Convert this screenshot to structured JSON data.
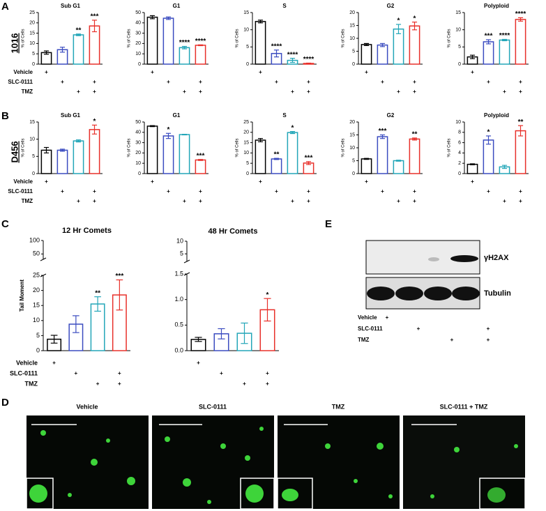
{
  "panels": [
    "A",
    "B",
    "C",
    "D",
    "E"
  ],
  "row_labels": [
    "1016",
    "D456"
  ],
  "treatments": {
    "labels": [
      "Vehicle",
      "SLC-0111",
      "TMZ"
    ],
    "marks": [
      [
        "+",
        null,
        null,
        null
      ],
      [
        null,
        "+",
        null,
        "+"
      ],
      [
        null,
        null,
        "+",
        "+"
      ]
    ]
  },
  "blot": {
    "bands": [
      "γH2AX",
      "Tubulin"
    ]
  },
  "images": {
    "titles": [
      "Vehicle",
      "SLC-0111",
      "TMZ",
      "SLC-0111 + TMZ"
    ]
  },
  "chart_data": [
    {
      "type": "bar",
      "title": "Sub G1",
      "ylabel": "% of Cells",
      "ylim": [
        0,
        25
      ],
      "yticks": [
        0,
        5,
        10,
        15,
        20,
        25
      ],
      "colors": [
        "#000000",
        "#3b4cc0",
        "#23a6b8",
        "#e8302a"
      ],
      "values": [
        5.6,
        7,
        14.2,
        18.5
      ],
      "errors": [
        0.8,
        1.2,
        0.4,
        2.8
      ],
      "significance": [
        null,
        null,
        "**",
        "***"
      ]
    },
    {
      "type": "bar",
      "title": "G1",
      "ylabel": "% of Cells",
      "ylim": [
        0,
        50
      ],
      "yticks": [
        0,
        10,
        20,
        30,
        40,
        50
      ],
      "colors": [
        "#000000",
        "#3b4cc0",
        "#23a6b8",
        "#e8302a"
      ],
      "values": [
        45.5,
        44.5,
        16,
        18.3
      ],
      "errors": [
        1.5,
        1.2,
        1.2,
        0.4
      ],
      "significance": [
        null,
        null,
        "****",
        "****"
      ]
    },
    {
      "type": "bar",
      "title": "S",
      "ylabel": "% of Cells",
      "ylim": [
        0,
        15
      ],
      "yticks": [
        0,
        5,
        10,
        15
      ],
      "colors": [
        "#000000",
        "#3b4cc0",
        "#23a6b8",
        "#e8302a"
      ],
      "values": [
        12.4,
        3.1,
        1.1,
        0.2
      ],
      "errors": [
        0.4,
        1,
        0.6,
        0.1
      ],
      "significance": [
        null,
        "****",
        "****",
        "****"
      ]
    },
    {
      "type": "bar",
      "title": "G2",
      "ylabel": "% of Cells",
      "ylim": [
        0,
        20
      ],
      "yticks": [
        0,
        5,
        10,
        15,
        20
      ],
      "colors": [
        "#000000",
        "#3b4cc0",
        "#23a6b8",
        "#e8302a"
      ],
      "values": [
        7.6,
        7.4,
        13.6,
        14.8
      ],
      "errors": [
        0.4,
        0.6,
        1.8,
        1.5
      ],
      "significance": [
        null,
        null,
        "*",
        "*"
      ]
    },
    {
      "type": "bar",
      "title": "Polyploid",
      "ylabel": "% of Cells",
      "ylim": [
        0,
        15
      ],
      "yticks": [
        0,
        5,
        10,
        15
      ],
      "colors": [
        "#000000",
        "#3b4cc0",
        "#23a6b8",
        "#e8302a"
      ],
      "values": [
        2.1,
        6.5,
        7,
        13
      ],
      "errors": [
        0.5,
        0.6,
        0.2,
        0.5
      ],
      "significance": [
        null,
        "***",
        "****",
        "****"
      ]
    },
    {
      "type": "bar",
      "title": "Sub G1",
      "ylabel": "% of Cells",
      "ylim": [
        0,
        15
      ],
      "yticks": [
        0,
        5,
        10,
        15
      ],
      "colors": [
        "#000000",
        "#3b4cc0",
        "#23a6b8",
        "#e8302a"
      ],
      "values": [
        6.8,
        6.8,
        9.5,
        12.8
      ],
      "errors": [
        0.8,
        0.3,
        0.3,
        1.3
      ],
      "significance": [
        null,
        null,
        null,
        "*"
      ]
    },
    {
      "type": "bar",
      "title": "G1",
      "ylabel": "% of Cells",
      "ylim": [
        0,
        50
      ],
      "yticks": [
        0,
        10,
        20,
        30,
        40,
        50
      ],
      "colors": [
        "#000000",
        "#3b4cc0",
        "#23a6b8",
        "#e8302a"
      ],
      "values": [
        46,
        36.5,
        37.8,
        13.2
      ],
      "errors": [
        0.5,
        2.5,
        0.3,
        0.5
      ],
      "significance": [
        null,
        "*",
        null,
        "***"
      ]
    },
    {
      "type": "bar",
      "title": "S",
      "ylabel": "% of Cells",
      "ylim": [
        0,
        25
      ],
      "yticks": [
        0,
        5,
        10,
        15,
        20,
        25
      ],
      "colors": [
        "#000000",
        "#3b4cc0",
        "#23a6b8",
        "#e8302a"
      ],
      "values": [
        16.2,
        7.1,
        19.9,
        5.1
      ],
      "errors": [
        0.8,
        0.3,
        0.5,
        0.7
      ],
      "significance": [
        null,
        "**",
        "*",
        "***"
      ]
    },
    {
      "type": "bar",
      "title": "G2",
      "ylabel": "% of Cells",
      "ylim": [
        0,
        20
      ],
      "yticks": [
        0,
        5,
        10,
        15,
        20
      ],
      "colors": [
        "#000000",
        "#3b4cc0",
        "#23a6b8",
        "#e8302a"
      ],
      "values": [
        5.7,
        14.3,
        5,
        13.4
      ],
      "errors": [
        0.2,
        0.7,
        0.2,
        0.4
      ],
      "significance": [
        null,
        "***",
        null,
        "**"
      ]
    },
    {
      "type": "bar",
      "title": "Polyploid",
      "ylabel": "% of Cells",
      "ylim": [
        0,
        10
      ],
      "yticks": [
        0,
        2,
        4,
        6,
        8,
        10
      ],
      "colors": [
        "#000000",
        "#3b4cc0",
        "#23a6b8",
        "#e8302a"
      ],
      "values": [
        1.8,
        6.5,
        1.3,
        8.3
      ],
      "errors": [
        0.1,
        0.8,
        0.3,
        1
      ],
      "significance": [
        null,
        "*",
        null,
        "**"
      ]
    },
    {
      "type": "bar",
      "title": "12 Hr Comets",
      "ylabel": "Tail Moment",
      "ylim": [
        0,
        25
      ],
      "yticks": [
        0,
        5,
        10,
        15,
        20,
        25
      ],
      "ylim_upper": [
        30,
        100
      ],
      "yticks_upper": [
        50,
        100
      ],
      "colors": [
        "#000000",
        "#3b4cc0",
        "#23a6b8",
        "#e8302a"
      ],
      "values": [
        3.8,
        8.8,
        15.5,
        18.5
      ],
      "errors": [
        1.3,
        2.8,
        2.4,
        5
      ],
      "significance": [
        null,
        null,
        "**",
        "***"
      ]
    },
    {
      "type": "bar",
      "title": "48 Hr Comets",
      "ylim": [
        0,
        1.5
      ],
      "yticks": [
        {
          "value": 0,
          "label": "0.0"
        },
        {
          "value": 0.5,
          "label": "0.5"
        },
        {
          "value": 1,
          "label": "1.0"
        },
        {
          "value": 1.5,
          "label": "1.5"
        }
      ],
      "ylim_upper": [
        2,
        10
      ],
      "yticks_upper": [
        5,
        10
      ],
      "colors": [
        "#000000",
        "#3b4cc0",
        "#23a6b8",
        "#e8302a"
      ],
      "values": [
        0.22,
        0.33,
        0.34,
        0.8
      ],
      "errors": [
        0.04,
        0.1,
        0.2,
        0.22
      ],
      "significance": [
        null,
        null,
        null,
        "*"
      ]
    }
  ]
}
